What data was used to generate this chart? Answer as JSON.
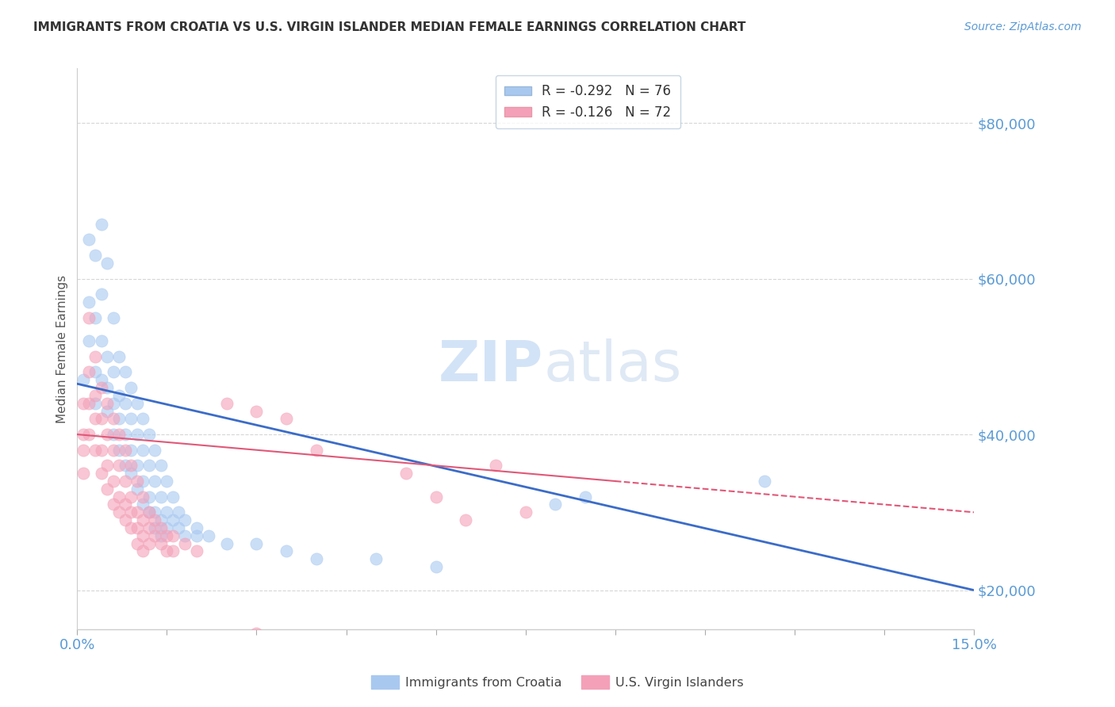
{
  "title": "IMMIGRANTS FROM CROATIA VS U.S. VIRGIN ISLANDER MEDIAN FEMALE EARNINGS CORRELATION CHART",
  "source": "Source: ZipAtlas.com",
  "ylabel": "Median Female Earnings",
  "xlim": [
    0.0,
    0.15
  ],
  "ylim": [
    15000,
    87000
  ],
  "yticks": [
    20000,
    40000,
    60000,
    80000
  ],
  "ytick_labels": [
    "$20,000",
    "$40,000",
    "$60,000",
    "$80,000"
  ],
  "legend_blue_label": "Immigrants from Croatia",
  "legend_pink_label": "U.S. Virgin Islanders",
  "R_blue": -0.292,
  "N_blue": 76,
  "R_pink": -0.126,
  "N_pink": 72,
  "blue_color": "#A8C8F0",
  "pink_color": "#F4A0B8",
  "line_blue_color": "#3B6CC8",
  "line_pink_color": "#E05878",
  "watermark_zip": "ZIP",
  "watermark_atlas": "atlas",
  "title_color": "#333333",
  "axis_color": "#5B9BD5",
  "legend_text_color": "#333333",
  "blue_scatter": [
    [
      0.001,
      47000
    ],
    [
      0.002,
      57000
    ],
    [
      0.002,
      65000
    ],
    [
      0.002,
      52000
    ],
    [
      0.003,
      63000
    ],
    [
      0.003,
      48000
    ],
    [
      0.003,
      44000
    ],
    [
      0.003,
      55000
    ],
    [
      0.004,
      67000
    ],
    [
      0.004,
      58000
    ],
    [
      0.004,
      52000
    ],
    [
      0.004,
      47000
    ],
    [
      0.005,
      62000
    ],
    [
      0.005,
      50000
    ],
    [
      0.005,
      46000
    ],
    [
      0.005,
      43000
    ],
    [
      0.006,
      55000
    ],
    [
      0.006,
      48000
    ],
    [
      0.006,
      44000
    ],
    [
      0.006,
      40000
    ],
    [
      0.007,
      50000
    ],
    [
      0.007,
      45000
    ],
    [
      0.007,
      42000
    ],
    [
      0.007,
      38000
    ],
    [
      0.008,
      48000
    ],
    [
      0.008,
      44000
    ],
    [
      0.008,
      40000
    ],
    [
      0.008,
      36000
    ],
    [
      0.009,
      46000
    ],
    [
      0.009,
      42000
    ],
    [
      0.009,
      38000
    ],
    [
      0.009,
      35000
    ],
    [
      0.01,
      44000
    ],
    [
      0.01,
      40000
    ],
    [
      0.01,
      36000
    ],
    [
      0.01,
      33000
    ],
    [
      0.011,
      42000
    ],
    [
      0.011,
      38000
    ],
    [
      0.011,
      34000
    ],
    [
      0.011,
      31000
    ],
    [
      0.012,
      40000
    ],
    [
      0.012,
      36000
    ],
    [
      0.012,
      32000
    ],
    [
      0.012,
      30000
    ],
    [
      0.013,
      38000
    ],
    [
      0.013,
      34000
    ],
    [
      0.013,
      30000
    ],
    [
      0.013,
      28000
    ],
    [
      0.014,
      36000
    ],
    [
      0.014,
      32000
    ],
    [
      0.014,
      29000
    ],
    [
      0.014,
      27000
    ],
    [
      0.015,
      34000
    ],
    [
      0.015,
      30000
    ],
    [
      0.015,
      28000
    ],
    [
      0.016,
      32000
    ],
    [
      0.016,
      29000
    ],
    [
      0.017,
      30000
    ],
    [
      0.017,
      28000
    ],
    [
      0.018,
      29000
    ],
    [
      0.018,
      27000
    ],
    [
      0.02,
      28000
    ],
    [
      0.02,
      27000
    ],
    [
      0.022,
      27000
    ],
    [
      0.025,
      26000
    ],
    [
      0.03,
      26000
    ],
    [
      0.035,
      25000
    ],
    [
      0.04,
      24000
    ],
    [
      0.05,
      24000
    ],
    [
      0.06,
      23000
    ],
    [
      0.08,
      31000
    ],
    [
      0.085,
      32000
    ],
    [
      0.115,
      34000
    ]
  ],
  "pink_scatter": [
    [
      0.001,
      44000
    ],
    [
      0.001,
      40000
    ],
    [
      0.001,
      38000
    ],
    [
      0.001,
      35000
    ],
    [
      0.002,
      55000
    ],
    [
      0.002,
      48000
    ],
    [
      0.002,
      44000
    ],
    [
      0.002,
      40000
    ],
    [
      0.003,
      50000
    ],
    [
      0.003,
      45000
    ],
    [
      0.003,
      42000
    ],
    [
      0.003,
      38000
    ],
    [
      0.004,
      46000
    ],
    [
      0.004,
      42000
    ],
    [
      0.004,
      38000
    ],
    [
      0.004,
      35000
    ],
    [
      0.005,
      44000
    ],
    [
      0.005,
      40000
    ],
    [
      0.005,
      36000
    ],
    [
      0.005,
      33000
    ],
    [
      0.006,
      42000
    ],
    [
      0.006,
      38000
    ],
    [
      0.006,
      34000
    ],
    [
      0.006,
      31000
    ],
    [
      0.007,
      40000
    ],
    [
      0.007,
      36000
    ],
    [
      0.007,
      32000
    ],
    [
      0.007,
      30000
    ],
    [
      0.008,
      38000
    ],
    [
      0.008,
      34000
    ],
    [
      0.008,
      31000
    ],
    [
      0.008,
      29000
    ],
    [
      0.009,
      36000
    ],
    [
      0.009,
      32000
    ],
    [
      0.009,
      30000
    ],
    [
      0.009,
      28000
    ],
    [
      0.01,
      34000
    ],
    [
      0.01,
      30000
    ],
    [
      0.01,
      28000
    ],
    [
      0.01,
      26000
    ],
    [
      0.011,
      32000
    ],
    [
      0.011,
      29000
    ],
    [
      0.011,
      27000
    ],
    [
      0.011,
      25000
    ],
    [
      0.012,
      30000
    ],
    [
      0.012,
      28000
    ],
    [
      0.012,
      26000
    ],
    [
      0.013,
      29000
    ],
    [
      0.013,
      27000
    ],
    [
      0.014,
      28000
    ],
    [
      0.014,
      26000
    ],
    [
      0.015,
      27000
    ],
    [
      0.015,
      25000
    ],
    [
      0.016,
      27000
    ],
    [
      0.016,
      25000
    ],
    [
      0.018,
      26000
    ],
    [
      0.02,
      25000
    ],
    [
      0.025,
      44000
    ],
    [
      0.03,
      43000
    ],
    [
      0.035,
      42000
    ],
    [
      0.04,
      38000
    ],
    [
      0.055,
      35000
    ],
    [
      0.06,
      32000
    ],
    [
      0.065,
      29000
    ],
    [
      0.07,
      36000
    ],
    [
      0.075,
      30000
    ],
    [
      0.03,
      14500
    ]
  ],
  "blue_line_solid": [
    [
      0.0,
      46500
    ],
    [
      0.15,
      20000
    ]
  ],
  "pink_line_solid": [
    [
      0.0,
      40000
    ],
    [
      0.09,
      34000
    ]
  ],
  "pink_line_dashed": [
    [
      0.09,
      34000
    ],
    [
      0.15,
      30000
    ]
  ]
}
